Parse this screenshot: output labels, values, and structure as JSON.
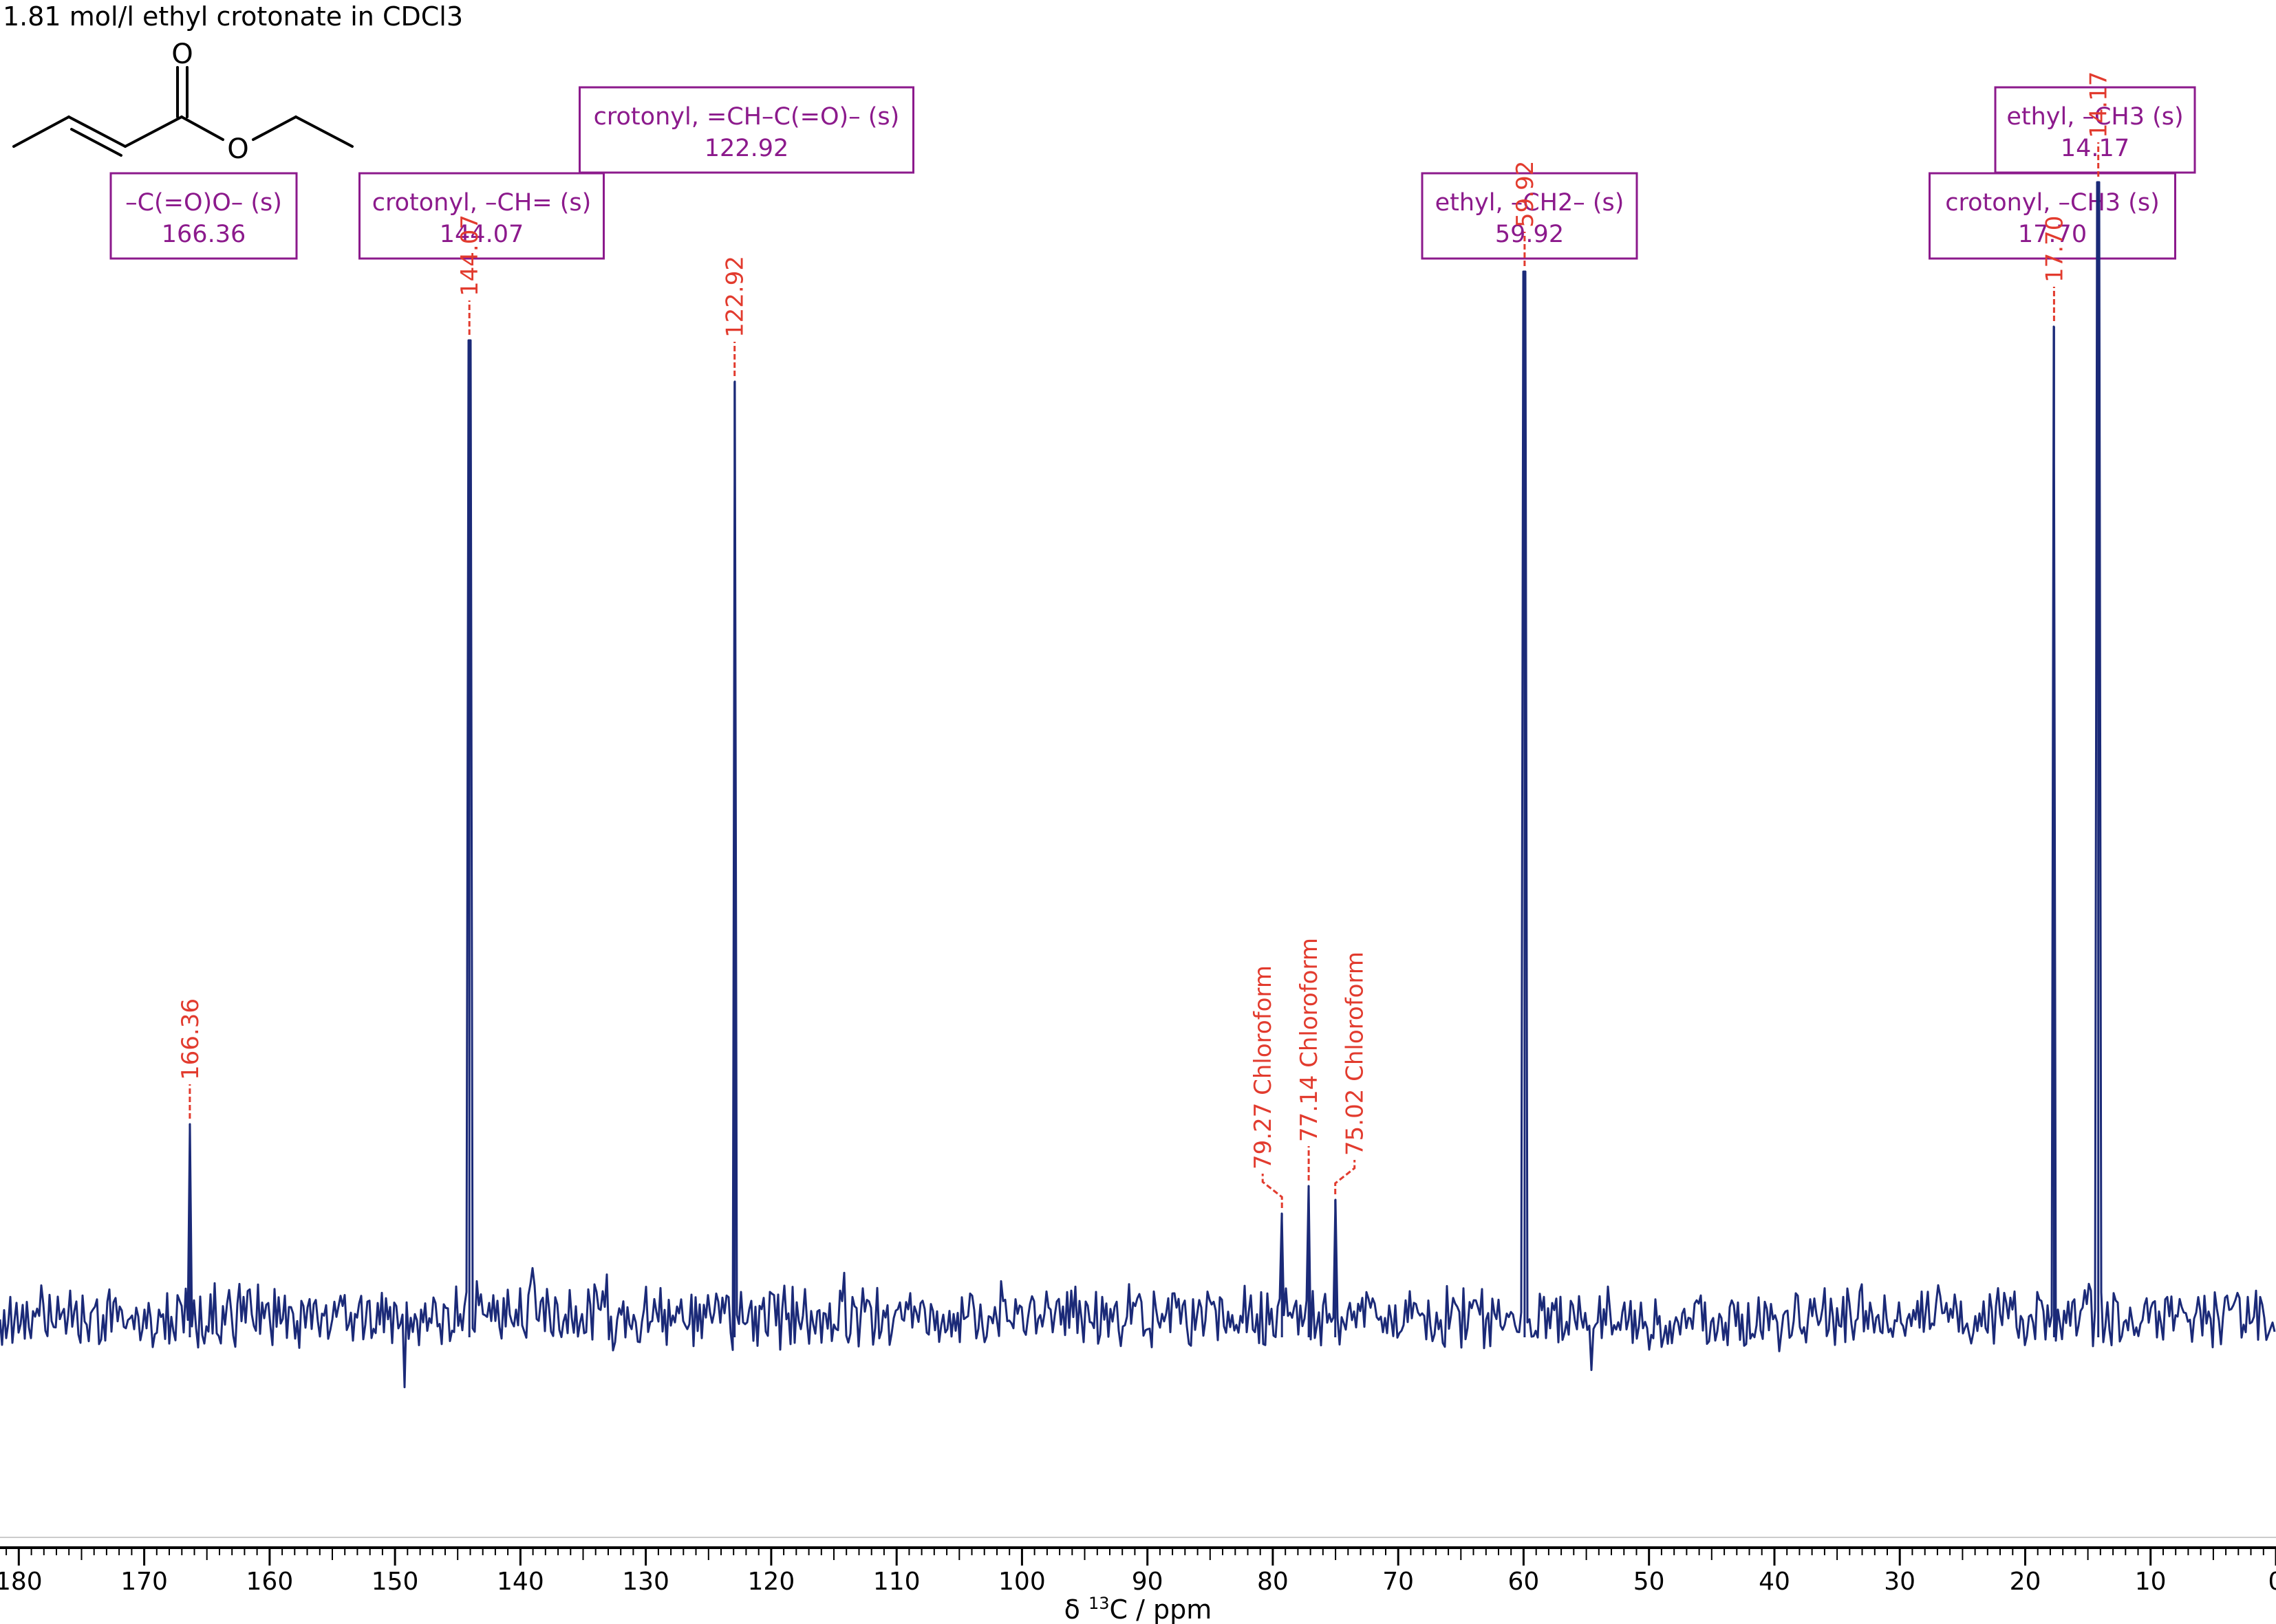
{
  "title": "1.81 mol/l ethyl crotonate in CDCl3",
  "structure": {
    "oxygen_carbonyl": "O",
    "oxygen_ester": "O"
  },
  "colors": {
    "spectrum": "#1b2a78",
    "peak_label": "#e23b2e",
    "assignment": "#8c1a8c",
    "axis": "#000000"
  },
  "chart_data": {
    "type": "line",
    "xlabel_prefix": "δ ",
    "xlabel_sup": "13",
    "xlabel_suffix": "C / ppm",
    "xlim": [
      181.5,
      0
    ],
    "x_reversed": true,
    "x_ticks": [
      "180",
      "170",
      "160",
      "150",
      "140",
      "130",
      "120",
      "110",
      "100",
      "90",
      "80",
      "70",
      "60",
      "50",
      "40",
      "30",
      "20",
      "10",
      "0"
    ],
    "grid": false,
    "noise_level": "baseline",
    "peaks": [
      {
        "ppm": 166.36,
        "height": 0.28,
        "label": "166.36"
      },
      {
        "ppm": 144.07,
        "height": 1.42,
        "label": "144.07"
      },
      {
        "ppm": 122.92,
        "height": 1.36,
        "label": "122.92"
      },
      {
        "ppm": 79.27,
        "height": 0.15,
        "label": "79.27 Chloroform"
      },
      {
        "ppm": 77.14,
        "height": 0.19,
        "label": "77.14 Chloroform"
      },
      {
        "ppm": 75.02,
        "height": 0.17,
        "label": "75.02 Chloroform"
      },
      {
        "ppm": 59.92,
        "height": 1.52,
        "label": "59.92"
      },
      {
        "ppm": 17.7,
        "height": 1.44,
        "label": "17.70"
      },
      {
        "ppm": 14.17,
        "height": 1.65,
        "label": "14.17"
      }
    ],
    "assignments": [
      {
        "name": "–C(=O)O– (s)",
        "value": "166.36"
      },
      {
        "name": "crotonyl, –CH= (s)",
        "value": "144.07"
      },
      {
        "name": "crotonyl, =CH–C(=O)– (s)",
        "value": "122.92"
      },
      {
        "name": "ethyl, –CH2– (s)",
        "value": "59.92"
      },
      {
        "name": "crotonyl, –CH3 (s)",
        "value": "17.70"
      },
      {
        "name": "ethyl, –CH3 (s)",
        "value": "14.17"
      }
    ]
  }
}
